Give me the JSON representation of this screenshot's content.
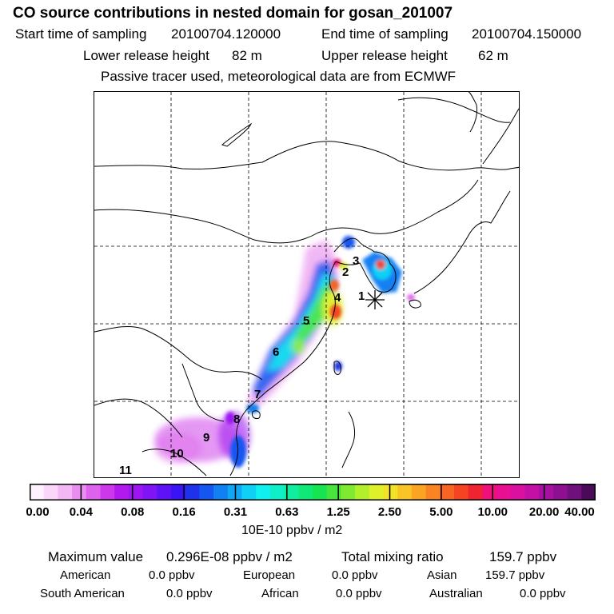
{
  "title": "CO  source contributions in nested domain for gosan_201007",
  "header": {
    "start_label": "Start time of sampling",
    "start_value": "20100704.120000",
    "end_label": "End time of sampling",
    "end_value": "20100704.150000",
    "lower_label": "Lower release height",
    "lower_value": "82 m",
    "upper_label": "Upper release height",
    "upper_value": "62 m",
    "note": "Passive tracer used, meteorological data are from ECMWF"
  },
  "map": {
    "receptor_marker": "asterisk-icon",
    "region_labels": [
      "1",
      "2",
      "3",
      "4",
      "5",
      "6",
      "7",
      "8",
      "9",
      "10",
      "11"
    ]
  },
  "colorbar": {
    "ticks": [
      "0.00",
      "0.04",
      "0.08",
      "0.16",
      "0.31",
      "0.63",
      "1.25",
      "2.50",
      "5.00",
      "10.00",
      "20.00",
      "40.00"
    ],
    "colors": [
      "#fff2ff",
      "#fad6fb",
      "#f3b7f6",
      "#e98df0",
      "#dd62ec",
      "#cc38ea",
      "#b219ee",
      "#9c15f2",
      "#7f14f5",
      "#5d13f5",
      "#3a14f2",
      "#1e32ec",
      "#1656f0",
      "#1380f2",
      "#10a8f5",
      "#10d0f5",
      "#10f0f0",
      "#10f0c8",
      "#10eca0",
      "#10e878",
      "#16e450",
      "#46e43c",
      "#80ea30",
      "#b2f02c",
      "#def02a",
      "#f2e228",
      "#f8c426",
      "#faa424",
      "#fa8424",
      "#f86424",
      "#f44424",
      "#ee2430",
      "#f0107c",
      "#e81092",
      "#da10a0",
      "#c410a4",
      "#a810a0",
      "#8c1090",
      "#70107c",
      "#4a0a58"
    ],
    "unit": "10E-10 ppbv / m2"
  },
  "stats": {
    "max_label": "Maximum value",
    "max_value": "0.296E-08 ppbv / m2",
    "total_label": "Total mixing ratio",
    "total_value": "159.7 ppbv",
    "american_label": "American",
    "american_value": "0.0 ppbv",
    "european_label": "European",
    "european_value": "0.0 ppbv",
    "asian_label": "Asian",
    "asian_value": "159.7 ppbv",
    "south_american_label": "South American",
    "south_american_value": "0.0 ppbv",
    "african_label": "African",
    "african_value": "0.0 ppbv",
    "australian_label": "Australian",
    "australian_value": "0.0 ppbv"
  }
}
